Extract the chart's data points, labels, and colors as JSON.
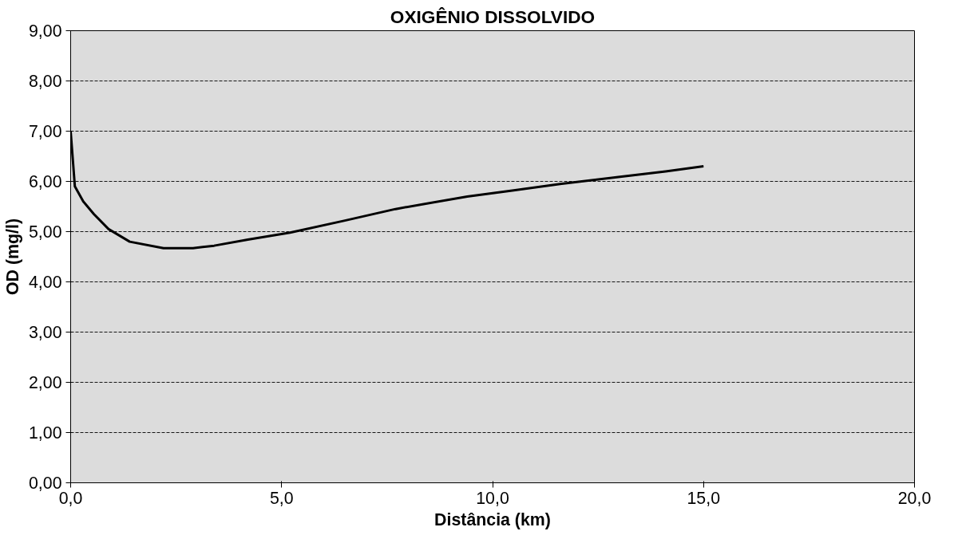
{
  "chart_data": {
    "type": "line",
    "title": "OXIGÊNIO DISSOLVIDO",
    "xlabel": "Distância (km)",
    "ylabel": "OD (mg/l)",
    "x": [
      0,
      0.1,
      0.3,
      0.55,
      0.9,
      1.4,
      2.2,
      2.9,
      3.4,
      4.2,
      5.2,
      6.5,
      7.7,
      9.4,
      10.5,
      11.6,
      12.9,
      14.1,
      15.0
    ],
    "series": [
      {
        "color": "#000000",
        "values": [
          7.0,
          5.9,
          5.6,
          5.35,
          5.05,
          4.8,
          4.67,
          4.67,
          4.72,
          4.84,
          4.98,
          5.22,
          5.45,
          5.7,
          5.82,
          5.95,
          6.08,
          6.2,
          6.3
        ]
      }
    ],
    "xlim": [
      0,
      20
    ],
    "xticks": [
      {
        "value": 0,
        "label": "0,0"
      },
      {
        "value": 5,
        "label": "5,0"
      },
      {
        "value": 10,
        "label": "10,0"
      },
      {
        "value": 15,
        "label": "15,0"
      },
      {
        "value": 20,
        "label": "20,0"
      }
    ],
    "ylim": [
      0,
      9
    ],
    "yticks": [
      {
        "value": 0,
        "label": "0,00"
      },
      {
        "value": 1,
        "label": "1,00"
      },
      {
        "value": 2,
        "label": "2,00"
      },
      {
        "value": 3,
        "label": "3,00"
      },
      {
        "value": 4,
        "label": "4,00"
      },
      {
        "value": 5,
        "label": "5,00"
      },
      {
        "value": 6,
        "label": "6,00"
      },
      {
        "value": 7,
        "label": "7,00"
      },
      {
        "value": 8,
        "label": "8,00"
      },
      {
        "value": 9,
        "label": "9,00"
      }
    ],
    "grid": "y",
    "marker": "none",
    "line_style": "solid"
  }
}
